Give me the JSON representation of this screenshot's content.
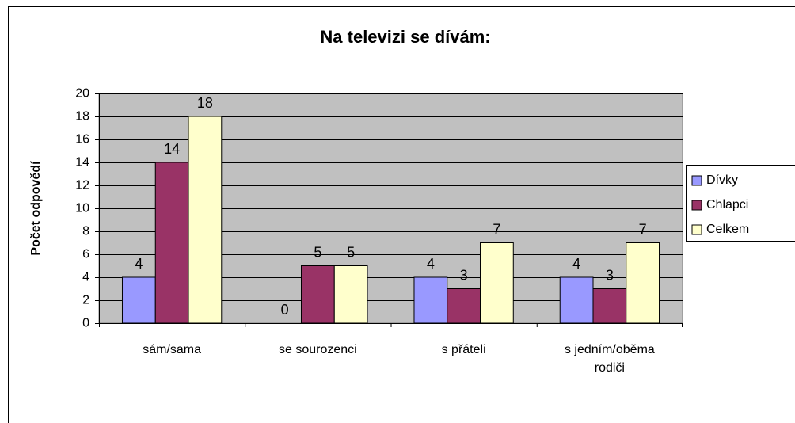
{
  "chart_data": {
    "type": "bar",
    "title": "Na televizi se dívám:",
    "y_label": "Počet odpovědí",
    "categories": [
      "sám/sama",
      "se sourozenci",
      "s přáteli",
      "s jedním/oběma rodiči"
    ],
    "series": [
      {
        "name": "Dívky",
        "color": "#9999ff",
        "values": [
          4,
          0,
          4,
          4
        ]
      },
      {
        "name": "Chlapci",
        "color": "#993366",
        "values": [
          14,
          5,
          3,
          3
        ]
      },
      {
        "name": "Celkem",
        "color": "#ffffcc",
        "values": [
          18,
          5,
          7,
          7
        ]
      }
    ],
    "ylim": [
      0,
      20
    ],
    "yticks": [
      0,
      2,
      4,
      6,
      8,
      10,
      12,
      14,
      16,
      18,
      20
    ],
    "grid": true,
    "legend": "right"
  }
}
